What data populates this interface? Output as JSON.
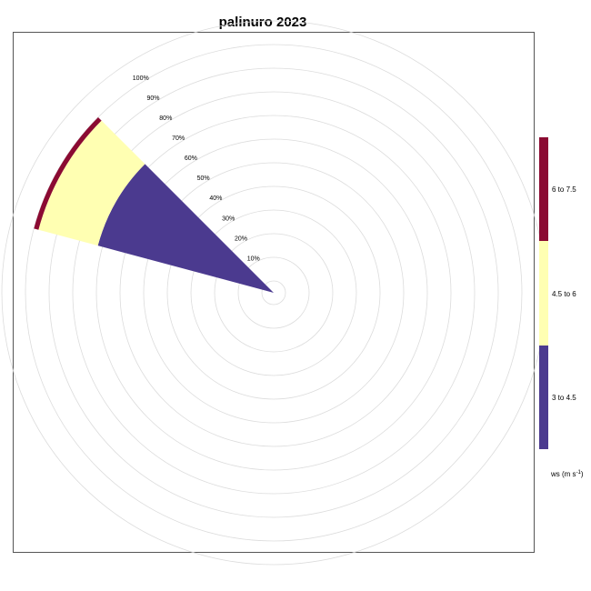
{
  "chart_data": {
    "type": "polar-bar",
    "title": "palinuro 2023",
    "direction_deg": 300,
    "radial_ticks": [
      "10%",
      "20%",
      "30%",
      "40%",
      "50%",
      "60%",
      "70%",
      "80%",
      "90%",
      "100%"
    ],
    "radial_max_percent": 110,
    "series": [
      {
        "name": "3 to 4.5",
        "value": 72,
        "color": "#4b3a8f"
      },
      {
        "name": "4.5 to 6",
        "value": 26,
        "color": "#ffffb2"
      },
      {
        "name": "6 to 7.5",
        "value": 2,
        "color": "#8b0a32"
      }
    ],
    "legend": {
      "title_main": "ws (m s",
      "title_sup": "-1",
      "title_close": ")",
      "placement": "right"
    }
  }
}
